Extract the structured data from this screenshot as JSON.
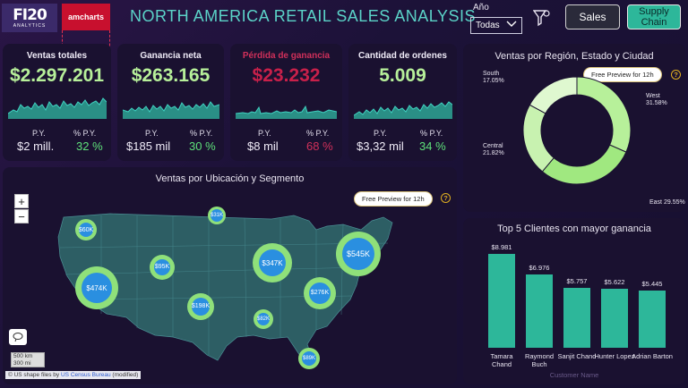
{
  "header": {
    "logo1_text": "FI20",
    "logo1_sub": "ANALYTICS",
    "logo2_text": "amcharts",
    "title": "NORTH AMERICA RETAIL SALES ANALYSIS",
    "year_label": "Año",
    "year_value": "Todas",
    "sales_button": "Sales",
    "supply_button_line1": "Supply",
    "supply_button_line2": "Chain"
  },
  "kpis": [
    {
      "title": "Ventas totales",
      "value": "$2.297.201",
      "py_label": "P.Y.",
      "ppy_label": "% P.Y.",
      "py_value": "$2 mill.",
      "ppy_value": "32 %",
      "title_color": "#f0ecf8",
      "value_color": "#b7f09a"
    },
    {
      "title": "Ganancia neta",
      "value": "$263.165",
      "py_label": "P.Y.",
      "ppy_label": "% P.Y.",
      "py_value": "$185 mil",
      "ppy_value": "30 %",
      "title_color": "#f0ecf8",
      "value_color": "#b7f09a"
    },
    {
      "title": "Pérdida de ganancia",
      "value": "$23.232",
      "py_label": "P.Y.",
      "ppy_label": "% P.Y.",
      "py_value": "$8 mil",
      "ppy_value": "68 %",
      "title_color": "#d0305a",
      "value_color": "#c8204a"
    },
    {
      "title": "Cantidad de ordenes",
      "value": "5.009",
      "py_label": "P.Y.",
      "ppy_label": "% P.Y.",
      "py_value": "$3,32 mil",
      "ppy_value": "34 %",
      "title_color": "#f0ecf8",
      "value_color": "#b7f09a"
    }
  ],
  "map": {
    "title": "Ventas por Ubicación y Segmento",
    "preview_badge": "Free Preview for 12h",
    "help": "?",
    "zoom_in": "+",
    "zoom_out": "−",
    "scale_km": "500 km",
    "scale_mi": "300 mi",
    "attribution_prefix": "© US shape files by ",
    "attribution_link": "US Census Bureau",
    "attribution_suffix": " (modified)",
    "bubbles": [
      {
        "label": "$60K"
      },
      {
        "label": "$474K"
      },
      {
        "label": "$95K"
      },
      {
        "label": "$31K"
      },
      {
        "label": "$347K"
      },
      {
        "label": "$545K"
      },
      {
        "label": "$198K"
      },
      {
        "label": "$276K"
      },
      {
        "label": "$82K"
      },
      {
        "label": "$89K"
      }
    ]
  },
  "donut": {
    "title": "Ventas por Región, Estado y Ciudad",
    "preview_badge": "Free Preview for 12h",
    "help": "?",
    "slices": [
      {
        "name": "West",
        "pct": "31.58%",
        "value": 31.58,
        "color": "#b7f09a"
      },
      {
        "name": "East",
        "pct": "29.55%",
        "value": 29.55,
        "color": "#a0e880"
      },
      {
        "name": "Central",
        "pct": "21.82%",
        "value": 21.82,
        "color": "#c8f2b0"
      },
      {
        "name": "South",
        "pct": "17.05%",
        "value": 17.05,
        "color": "#dff8d0"
      }
    ]
  },
  "chart_data": {
    "type": "bar",
    "title": "Top 5 Clientes con mayor ganancia",
    "xlabel": "Customer Name",
    "categories": [
      "Tamara Chand",
      "Raymond Buch",
      "Sanjit Chand",
      "Hunter Lopez",
      "Adrian Barton"
    ],
    "values": [
      8981,
      6976,
      5757,
      5622,
      5445
    ],
    "value_labels": [
      "$8.981",
      "$6.976",
      "$5.757",
      "$5.622",
      "$5.445"
    ],
    "bar_color": "#2db79a"
  }
}
